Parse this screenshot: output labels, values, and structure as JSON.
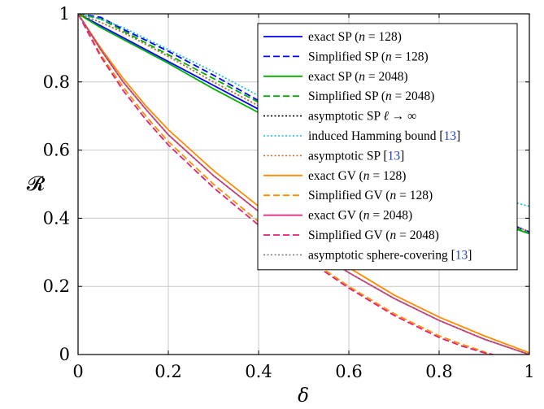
{
  "chart_data": {
    "type": "line",
    "title": "",
    "xlabel": "δ",
    "ylabel": "𝓡",
    "xlim": [
      0,
      1
    ],
    "ylim": [
      0,
      1
    ],
    "xticks": [
      "0",
      "0.2",
      "0.4",
      "0.6",
      "0.8",
      "1"
    ],
    "yticks": [
      "0",
      "0.2",
      "0.4",
      "0.6",
      "0.8",
      "1"
    ],
    "grid": true,
    "legend_position": "top-right",
    "series": [
      {
        "name": "exact SP (n = 128)",
        "legend_pre": "exact SP (",
        "legend_var": "n",
        "legend_post": " = 128)",
        "color": "#0000ff",
        "dash": "solid",
        "x": [
          0,
          0.05,
          0.1,
          0.2,
          0.3,
          0.4,
          0.5,
          0.6,
          0.7,
          0.8,
          0.9,
          1.0
        ],
        "y": [
          1,
          0.965,
          0.93,
          0.86,
          0.79,
          0.72,
          0.65,
          0.585,
          0.52,
          0.46,
          0.4,
          0.355
        ]
      },
      {
        "name": "Simplified SP (n = 128)",
        "legend_pre": "Simplified SP (",
        "legend_var": "n",
        "legend_post": " = 128)",
        "color": "#0000ff",
        "dash": "dashed",
        "x": [
          0,
          0.05,
          0.1,
          0.2,
          0.3,
          0.4,
          0.5,
          0.6,
          0.7,
          0.8,
          0.9,
          1.0
        ],
        "y": [
          1,
          0.99,
          0.955,
          0.89,
          0.82,
          0.745,
          0.675,
          0.605,
          0.54,
          0.475,
          0.415,
          0.36
        ]
      },
      {
        "name": "exact SP (n = 2048)",
        "legend_pre": "exact SP (",
        "legend_var": "n",
        "legend_post": " = 2048)",
        "color": "#00b000",
        "dash": "solid",
        "x": [
          0,
          0.05,
          0.1,
          0.2,
          0.3,
          0.4,
          0.5,
          0.6,
          0.7,
          0.8,
          0.9,
          1.0
        ],
        "y": [
          1,
          0.96,
          0.925,
          0.855,
          0.78,
          0.71,
          0.645,
          0.58,
          0.515,
          0.455,
          0.4,
          0.355
        ]
      },
      {
        "name": "Simplified SP (n = 2048)",
        "legend_pre": "Simplified SP (",
        "legend_var": "n",
        "legend_post": " = 2048)",
        "color": "#00b000",
        "dash": "dashed",
        "x": [
          0,
          0.05,
          0.1,
          0.2,
          0.3,
          0.4,
          0.5,
          0.6,
          0.7,
          0.8,
          0.9,
          1.0
        ],
        "y": [
          1,
          0.985,
          0.95,
          0.88,
          0.81,
          0.74,
          0.67,
          0.6,
          0.535,
          0.47,
          0.41,
          0.355
        ]
      },
      {
        "name": "asymptotic SP ℓ → ∞",
        "legend_pre": "asymptotic SP ",
        "legend_var": "ℓ",
        "legend_post": " → ∞",
        "color": "#000000",
        "dash": "dotted",
        "x": [
          0,
          0.05,
          0.1,
          0.2,
          0.3,
          0.4,
          0.5,
          0.6,
          0.7,
          0.8,
          0.9,
          1.0
        ],
        "y": [
          1,
          0.975,
          0.945,
          0.875,
          0.8,
          0.73,
          0.66,
          0.595,
          0.53,
          0.47,
          0.415,
          0.36
        ]
      },
      {
        "name": "induced Hamming bound [13]",
        "legend_pre": "induced Hamming bound [",
        "legend_ref": "13",
        "legend_post": "]",
        "color": "#00bcd4",
        "dash": "dotted",
        "x": [
          0,
          0.05,
          0.1,
          0.2,
          0.3,
          0.4,
          0.5,
          0.6,
          0.7,
          0.8,
          0.9,
          1.0
        ],
        "y": [
          1,
          0.985,
          0.96,
          0.895,
          0.83,
          0.76,
          0.695,
          0.63,
          0.57,
          0.515,
          0.47,
          0.435
        ]
      },
      {
        "name": "asymptotic SP [13]",
        "legend_pre": "asymptotic SP [",
        "legend_ref": "13",
        "legend_post": "]",
        "color": "#c87533",
        "dash": "dotted",
        "x": [
          0,
          0.05,
          0.1,
          0.2,
          0.3,
          0.4,
          0.5,
          0.6,
          0.7,
          0.8,
          0.9,
          1.0
        ],
        "y": [
          1,
          0.975,
          0.945,
          0.875,
          0.8,
          0.73,
          0.66,
          0.595,
          0.53,
          0.47,
          0.415,
          0.36
        ]
      },
      {
        "name": "exact GV (n = 128)",
        "legend_pre": "exact GV (",
        "legend_var": "n",
        "legend_post": " = 128)",
        "color": "#ff8c00",
        "dash": "solid",
        "x": [
          0,
          0.05,
          0.1,
          0.15,
          0.2,
          0.3,
          0.4,
          0.5,
          0.6,
          0.7,
          0.8,
          0.9,
          1.0
        ],
        "y": [
          1,
          0.9,
          0.81,
          0.73,
          0.66,
          0.54,
          0.435,
          0.34,
          0.255,
          0.175,
          0.11,
          0.055,
          0.005
        ]
      },
      {
        "name": "Simplified GV (n = 128)",
        "legend_pre": "Simplified GV (",
        "legend_var": "n",
        "legend_post": " = 128)",
        "color": "#ff8c00",
        "dash": "dashed",
        "x": [
          0,
          0.05,
          0.1,
          0.15,
          0.2,
          0.3,
          0.4,
          0.5,
          0.6,
          0.7,
          0.8,
          0.85,
          0.9,
          0.91
        ],
        "y": [
          1,
          0.88,
          0.785,
          0.7,
          0.625,
          0.5,
          0.39,
          0.29,
          0.2,
          0.12,
          0.055,
          0.03,
          0.008,
          0
        ]
      },
      {
        "name": "exact GV (n = 2048)",
        "legend_pre": "exact GV (",
        "legend_var": "n",
        "legend_post": " = 2048)",
        "color": "#e0207a",
        "dash": "solid",
        "x": [
          0,
          0.05,
          0.1,
          0.15,
          0.2,
          0.3,
          0.4,
          0.5,
          0.6,
          0.7,
          0.8,
          0.9,
          1.0
        ],
        "y": [
          1,
          0.895,
          0.8,
          0.72,
          0.645,
          0.525,
          0.42,
          0.325,
          0.24,
          0.165,
          0.1,
          0.045,
          0.0
        ]
      },
      {
        "name": "Simplified GV (n = 2048)",
        "legend_pre": "Simplified GV (",
        "legend_var": "n",
        "legend_post": " = 2048)",
        "color": "#e0207a",
        "dash": "dashed",
        "x": [
          0,
          0.05,
          0.1,
          0.15,
          0.2,
          0.3,
          0.4,
          0.5,
          0.6,
          0.7,
          0.8,
          0.85,
          0.9,
          0.92
        ],
        "y": [
          1,
          0.875,
          0.775,
          0.69,
          0.615,
          0.49,
          0.38,
          0.285,
          0.195,
          0.115,
          0.05,
          0.025,
          0.005,
          0
        ]
      },
      {
        "name": "asymptotic sphere-covering [13]",
        "legend_pre": "asymptotic sphere-covering [",
        "legend_ref": "13",
        "legend_post": "]",
        "color": "#808080",
        "dash": "dotted",
        "x": [
          0,
          0.05,
          0.1,
          0.15,
          0.2,
          0.3,
          0.4,
          0.5,
          0.6,
          0.7,
          0.8,
          0.9,
          1.0
        ],
        "y": [
          1,
          0.895,
          0.8,
          0.72,
          0.645,
          0.525,
          0.42,
          0.325,
          0.24,
          0.165,
          0.1,
          0.045,
          0.0
        ]
      }
    ]
  }
}
